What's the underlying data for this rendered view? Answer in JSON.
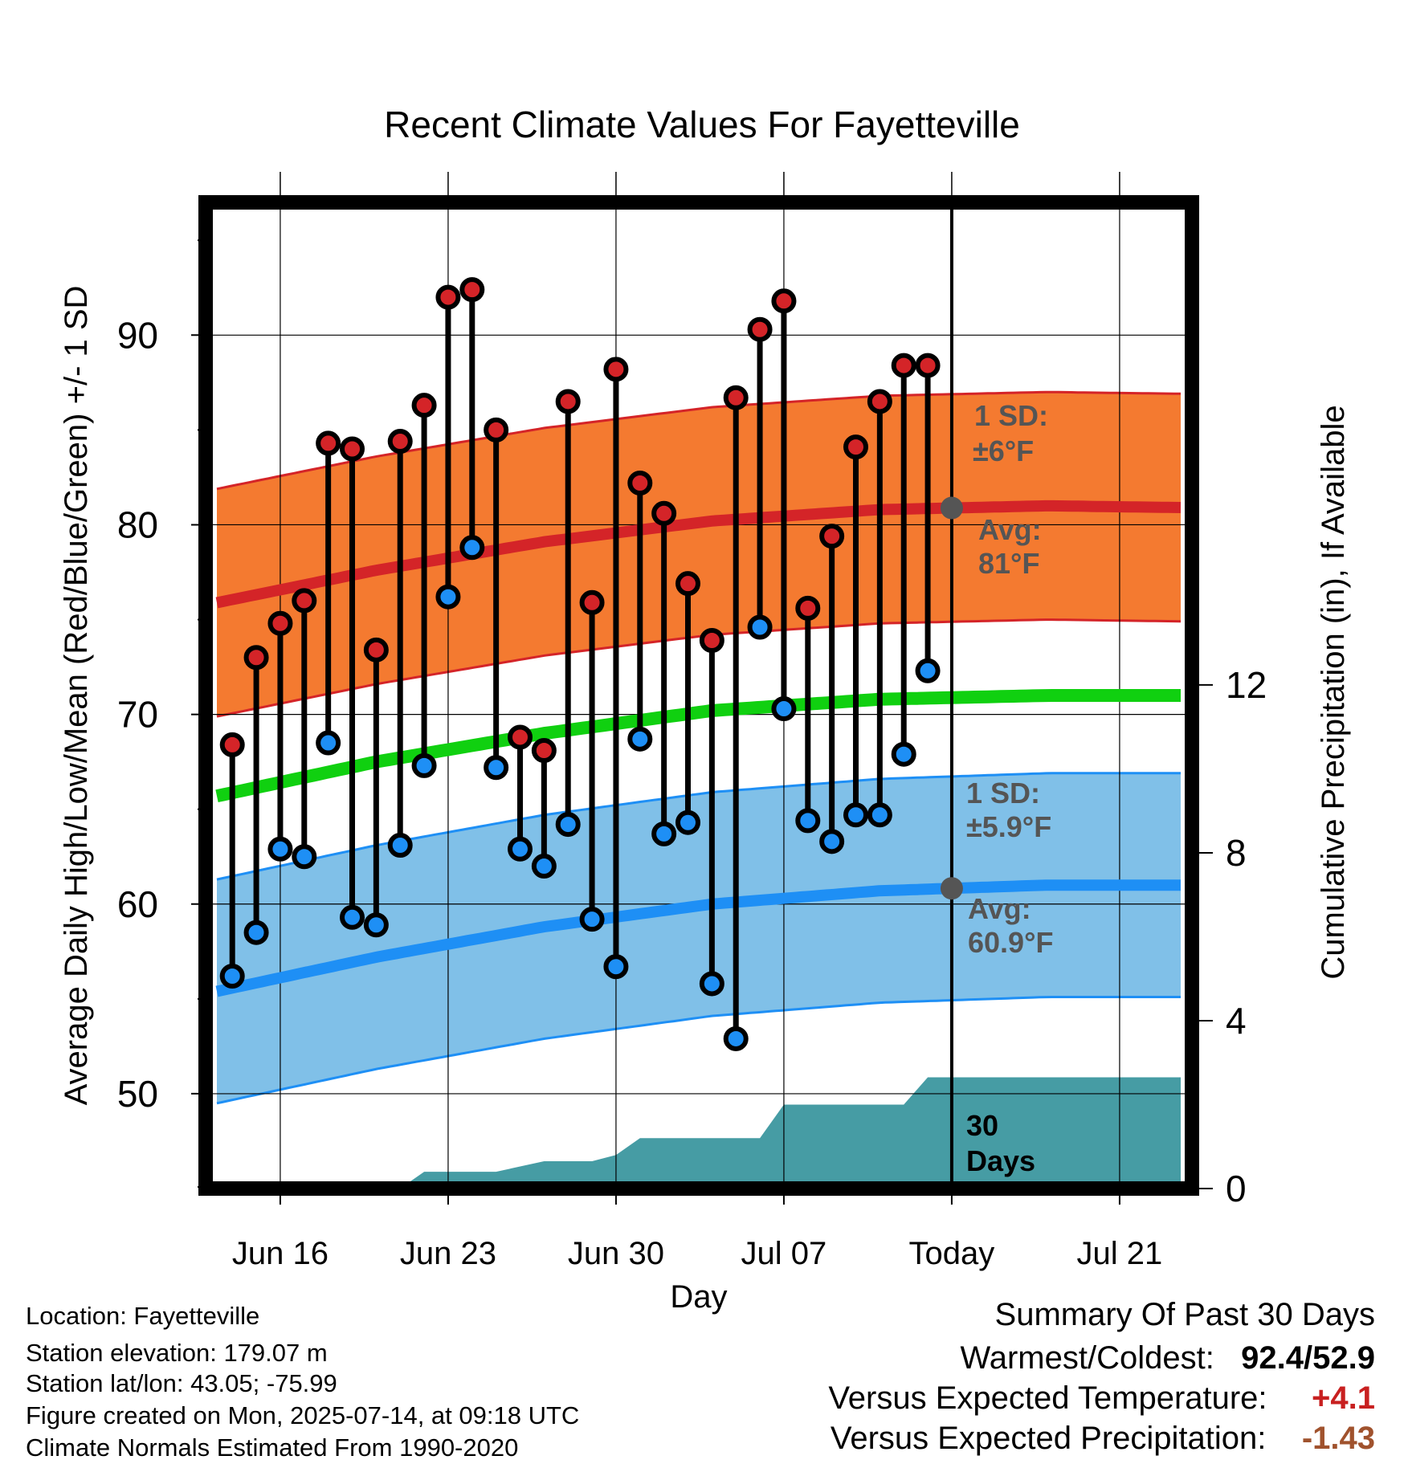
{
  "chart_data": {
    "type": "line",
    "title": "Recent Climate Values For Fayetteville",
    "xlabel": "Day",
    "ylabel": "Average Daily High/Low/Mean (Red/Blue/Green) +/- 1 SD",
    "ylabel_right": "Cumulative Precipitation (in), If Available",
    "x_ticks": [
      "Jun 16",
      "Jun 23",
      "Jun 30",
      "Jul 07",
      "Today",
      "Jul 21"
    ],
    "y_ticks": [
      50,
      60,
      70,
      80,
      90
    ],
    "y_ticks_right": [
      0,
      4,
      8,
      12
    ],
    "ylim": [
      45,
      97
    ],
    "ylim_right": [
      0,
      23.5
    ],
    "grid": true,
    "colors": {
      "high": "#d42428",
      "high_band": "#f47a30",
      "low": "#1e8ff5",
      "low_band": "#80c0e8",
      "mean": "#10d010",
      "precip": "#469ca4",
      "annotation": "#555555"
    },
    "dates": [
      "Jun 14",
      "Jun 15",
      "Jun 16",
      "Jun 17",
      "Jun 18",
      "Jun 19",
      "Jun 20",
      "Jun 21",
      "Jun 22",
      "Jun 23",
      "Jun 24",
      "Jun 25",
      "Jun 26",
      "Jun 27",
      "Jun 28",
      "Jun 29",
      "Jun 30",
      "Jul 01",
      "Jul 02",
      "Jul 03",
      "Jul 04",
      "Jul 05",
      "Jul 06",
      "Jul 07",
      "Jul 08",
      "Jul 09",
      "Jul 10",
      "Jul 11",
      "Jul 12",
      "Jul 13"
    ],
    "highs": [
      68.4,
      73.0,
      74.8,
      76.0,
      84.3,
      84.0,
      73.4,
      84.4,
      86.3,
      92.0,
      92.4,
      85.0,
      68.8,
      68.1,
      86.5,
      75.9,
      88.2,
      82.2,
      80.6,
      76.9,
      73.9,
      86.7,
      90.3,
      91.8,
      75.6,
      79.4,
      84.1,
      86.5,
      88.4,
      88.4
    ],
    "lows": [
      56.2,
      58.5,
      62.9,
      62.5,
      68.5,
      59.3,
      58.9,
      63.1,
      67.3,
      76.2,
      78.8,
      67.2,
      62.9,
      62.0,
      64.2,
      59.2,
      56.7,
      68.7,
      63.7,
      64.3,
      55.8,
      52.9,
      74.6,
      70.3,
      64.4,
      63.3,
      64.7,
      64.7,
      67.9,
      72.3
    ],
    "normals": {
      "dates": [
        "Jun 13",
        "Jun 20",
        "Jun 27",
        "Jul 04",
        "Jul 11",
        "Jul 18",
        "Jul 24"
      ],
      "high_avg": [
        75.8,
        77.6,
        79.1,
        80.2,
        80.8,
        81.0,
        80.9
      ],
      "high_sd": 6,
      "low_avg": [
        55.3,
        57.2,
        58.8,
        60.0,
        60.7,
        61.0,
        61.0
      ],
      "low_sd": 5.9,
      "mean_avg": [
        65.6,
        67.5,
        69.0,
        70.2,
        70.8,
        71.0,
        71.0
      ]
    },
    "precip": {
      "dates": [
        "Jun 20",
        "Jun 21",
        "Jun 22",
        "Jun 25",
        "Jun 27",
        "Jun 29",
        "Jun 30",
        "Jul 01",
        "Jul 06",
        "Jul 07",
        "Jul 12",
        "Jul 13",
        "Jul 24"
      ],
      "values": [
        0.0,
        0.0,
        0.4,
        0.4,
        0.65,
        0.65,
        0.8,
        1.2,
        1.2,
        2.0,
        2.0,
        2.65,
        2.65
      ]
    },
    "annotations": {
      "high_sd_label": "1 SD:",
      "high_sd_value": "±6°F",
      "high_avg_label": "Avg:",
      "high_avg_value": "81°F",
      "low_sd_label": "1 SD:",
      "low_sd_value": "±5.9°F",
      "low_avg_label": "Avg:",
      "low_avg_value": "60.9°F",
      "precip_label_1": "30",
      "precip_label_2": "Days"
    }
  },
  "info": {
    "location": "Location: Fayetteville",
    "elevation": "Station elevation: 179.07 m",
    "latlon": "Station lat/lon: 43.05; -75.99",
    "created": "Figure created on Mon, 2025-07-14, at 09:18 UTC",
    "normals": "Climate Normals Estimated From 1990-2020"
  },
  "summary": {
    "heading": "Summary Of Past 30 Days",
    "warm_cold_label": "Warmest/Coldest:",
    "warmest": "92.4",
    "coldest": "52.9",
    "temp_label": "Versus Expected Temperature:",
    "temp_value": "+4.1",
    "temp_color": "#c82020",
    "precip_label": "Versus Expected Precipitation:",
    "precip_value": "-1.43",
    "precip_color": "#a0522d"
  }
}
